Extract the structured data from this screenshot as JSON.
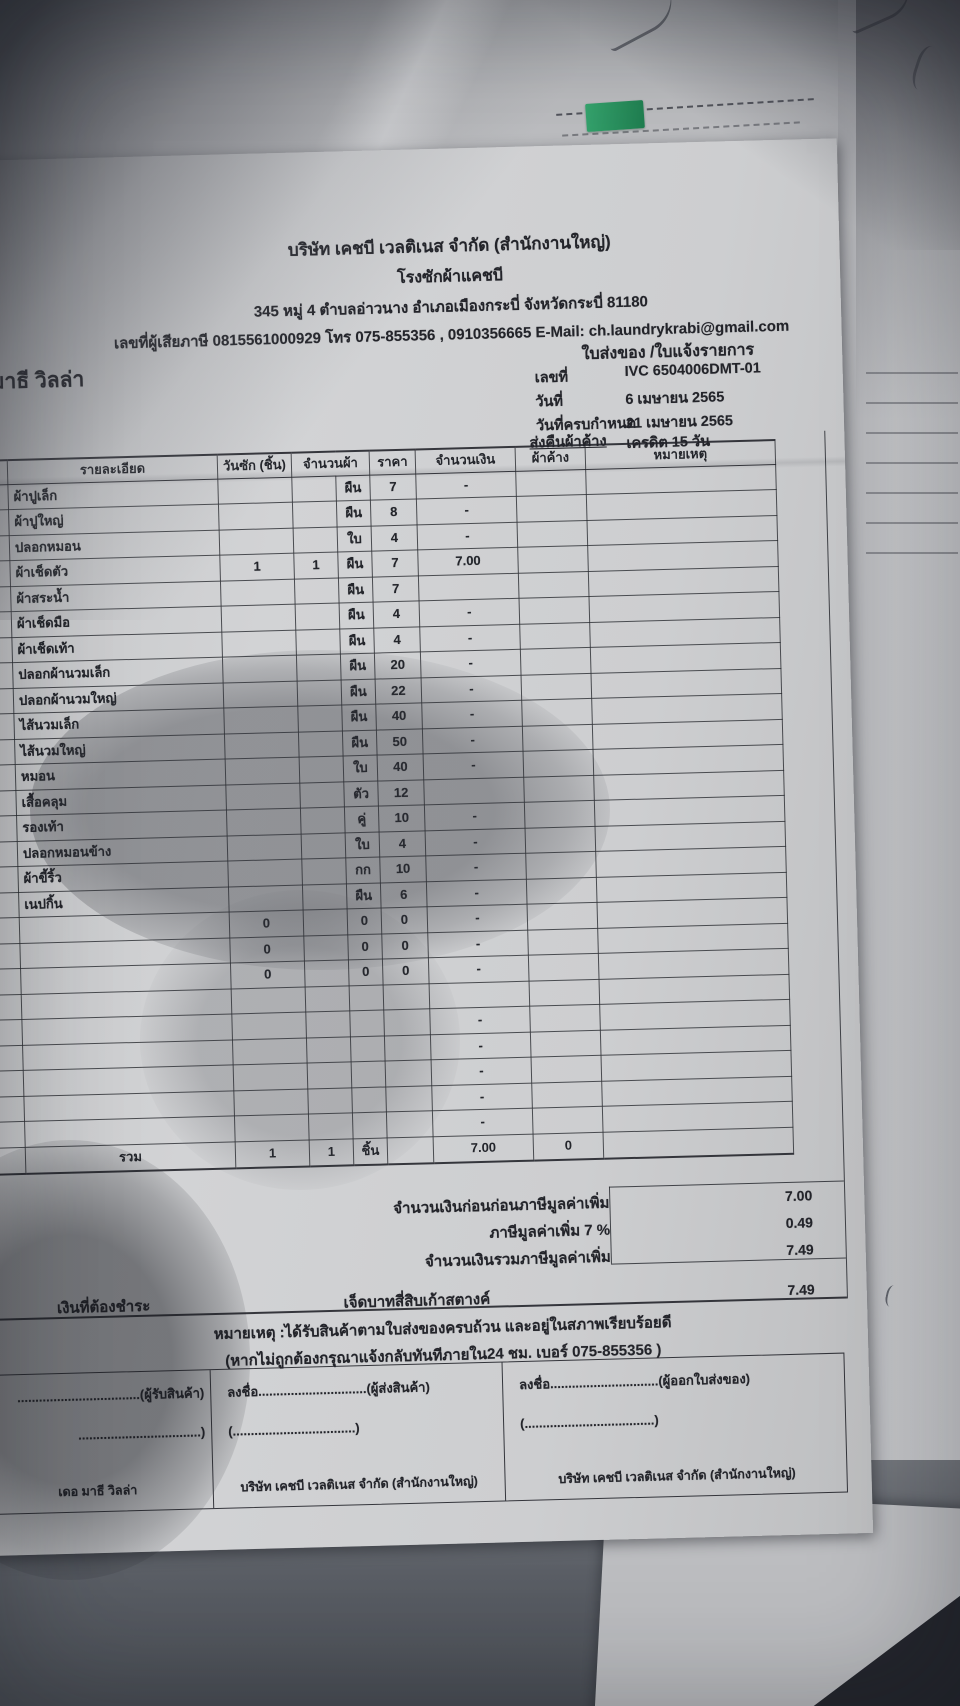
{
  "photo": {
    "description": "photo of a Thai laundry delivery note / invoice on paper",
    "colors": {
      "paper": "#cdced0",
      "background_paper": "#b6b7ba",
      "fabric": "#565a61",
      "shadow": "#23252c",
      "highlight_tab": "#2f9e62"
    }
  },
  "document": {
    "company": {
      "name": "บริษัท เคชบี เวลติเนส จำกัด (สำนักงานใหญ่)",
      "branch": "โรงซักผ้าแคชบี",
      "address": "345 หมู่ 4 ตำบลอ่าวนาง อำเภอเมืองกระบี่ จังหวัดกระบี่ 81180",
      "contact": "เลขที่ผู้เสียภาษี 0815561000929 โทร 075-855356 , 0910356665 E-Mail: ch.laundrykrabi@gmail.com"
    },
    "doc_type": "ใบส่งของ /ใบแจ้งรายการ",
    "customer": "มาธี วิลล่า",
    "meta": {
      "no_label": "เลขที่",
      "no": "IVC 6504006DMT-01",
      "date_label": "วันที่",
      "date": "6 เมษายน 2565",
      "due_label": "วันที่ครบกำหนด",
      "due": "21 เมษายน 2565",
      "return_note": "ส่งคืนผ้าค้าง",
      "credit": "เครดิต 15 วัน"
    },
    "table": {
      "headers": [
        "รายละเอียด",
        "วันซัก (ชิ้น)",
        "จำนวนผ้า",
        "ราคา",
        "จำนวนเงิน",
        "ผ้าค้าง",
        "หมายเหตุ"
      ],
      "rows": [
        {
          "name": "ผ้าปูเล็ก",
          "wash": "",
          "qty": "",
          "unit": "ผืน",
          "price": "7",
          "amount": "-",
          "balance": "",
          "note": ""
        },
        {
          "name": "ผ้าปูใหญ่",
          "wash": "",
          "qty": "",
          "unit": "ผืน",
          "price": "8",
          "amount": "-",
          "balance": "",
          "note": ""
        },
        {
          "name": "ปลอกหมอน",
          "wash": "",
          "qty": "",
          "unit": "ใบ",
          "price": "4",
          "amount": "-",
          "balance": "",
          "note": ""
        },
        {
          "name": "ผ้าเช็ดตัว",
          "wash": "1",
          "qty": "1",
          "unit": "ผืน",
          "price": "7",
          "amount": "7.00",
          "balance": "",
          "note": ""
        },
        {
          "name": "ผ้าสระน้ำ",
          "wash": "",
          "qty": "",
          "unit": "ผืน",
          "price": "7",
          "amount": "",
          "balance": "",
          "note": ""
        },
        {
          "name": "ผ้าเช็ดมือ",
          "wash": "",
          "qty": "",
          "unit": "ผืน",
          "price": "4",
          "amount": "-",
          "balance": "",
          "note": ""
        },
        {
          "name": "ผ้าเช็ดเท้า",
          "wash": "",
          "qty": "",
          "unit": "ผืน",
          "price": "4",
          "amount": "-",
          "balance": "",
          "note": ""
        },
        {
          "name": "ปลอกผ้านวมเล็ก",
          "wash": "",
          "qty": "",
          "unit": "ผืน",
          "price": "20",
          "amount": "-",
          "balance": "",
          "note": ""
        },
        {
          "name": "ปลอกผ้านวมใหญ่",
          "wash": "",
          "qty": "",
          "unit": "ผืน",
          "price": "22",
          "amount": "-",
          "balance": "",
          "note": ""
        },
        {
          "name": "ไส้นวมเล็ก",
          "wash": "",
          "qty": "",
          "unit": "ผืน",
          "price": "40",
          "amount": "-",
          "balance": "",
          "note": ""
        },
        {
          "name": "ไส้นวมใหญ่",
          "wash": "",
          "qty": "",
          "unit": "ผืน",
          "price": "50",
          "amount": "-",
          "balance": "",
          "note": ""
        },
        {
          "name": "หมอน",
          "wash": "",
          "qty": "",
          "unit": "ใบ",
          "price": "40",
          "amount": "-",
          "balance": "",
          "note": ""
        },
        {
          "name": "เสื้อคลุม",
          "wash": "",
          "qty": "",
          "unit": "ตัว",
          "price": "12",
          "amount": "",
          "balance": "",
          "note": ""
        },
        {
          "name": "รองเท้า",
          "wash": "",
          "qty": "",
          "unit": "คู่",
          "price": "10",
          "amount": "-",
          "balance": "",
          "note": ""
        },
        {
          "name": "ปลอกหมอนข้าง",
          "wash": "",
          "qty": "",
          "unit": "ใบ",
          "price": "4",
          "amount": "-",
          "balance": "",
          "note": ""
        },
        {
          "name": "ผ้าขี้ริ้ว",
          "wash": "",
          "qty": "",
          "unit": "กก",
          "price": "10",
          "amount": "-",
          "balance": "",
          "note": ""
        },
        {
          "name": "เนปกิ้น",
          "wash": "",
          "qty": "",
          "unit": "ผืน",
          "price": "6",
          "amount": "-",
          "balance": "",
          "note": ""
        },
        {
          "name": "",
          "wash": "0",
          "qty": "",
          "unit": "0",
          "price": "0",
          "amount": "-",
          "balance": "",
          "note": ""
        },
        {
          "name": "",
          "wash": "0",
          "qty": "",
          "unit": "0",
          "price": "0",
          "amount": "-",
          "balance": "",
          "note": ""
        },
        {
          "name": "",
          "wash": "0",
          "qty": "",
          "unit": "0",
          "price": "0",
          "amount": "-",
          "balance": "",
          "note": ""
        },
        {
          "name": "",
          "wash": "",
          "qty": "",
          "unit": "",
          "price": "",
          "amount": "",
          "balance": "",
          "note": ""
        },
        {
          "name": "",
          "wash": "",
          "qty": "",
          "unit": "",
          "price": "",
          "amount": "-",
          "balance": "",
          "note": ""
        },
        {
          "name": "",
          "wash": "",
          "qty": "",
          "unit": "",
          "price": "",
          "amount": "-",
          "balance": "",
          "note": ""
        },
        {
          "name": "",
          "wash": "",
          "qty": "",
          "unit": "",
          "price": "",
          "amount": "-",
          "balance": "",
          "note": ""
        },
        {
          "name": "",
          "wash": "",
          "qty": "",
          "unit": "",
          "price": "",
          "amount": "-",
          "balance": "",
          "note": ""
        },
        {
          "name": "",
          "wash": "",
          "qty": "",
          "unit": "",
          "price": "",
          "amount": "-",
          "balance": "",
          "note": ""
        }
      ],
      "total": {
        "label": "รวม",
        "wash": "1",
        "qty": "1",
        "unit": "ชิ้น",
        "price": "",
        "amount": "7.00",
        "balance": "0",
        "note": ""
      }
    },
    "summary": {
      "rows": [
        {
          "label": "จำนวนเงินก่อนก่อนภาษีมูลค่าเพิ่ม",
          "value": "7.00"
        },
        {
          "label": "ภาษีมูลค่าเพิ่ม 7 %",
          "value": "0.49"
        },
        {
          "label": "จำนวนเงินรวมภาษีมูลค่าเพิ่ม",
          "value": "7.49"
        }
      ],
      "payable_label": "เงินที่ต้องชำระ",
      "amount_text": "เจ็ดบาทสี่สิบเก้าสตางค์",
      "payable_value": "7.49"
    },
    "notes": [
      "หมายเหตุ :ได้รับสินค้าตามใบส่งของครบถ้วน และอยู่ในสภาพเรียบร้อยดี",
      "(หากไม่ถูกต้องกรุณาแจ้งกลับทันทีภายใน24 ชม.  เบอร์ 075-855356 )"
    ],
    "signatures": [
      {
        "line1": "..................................(ผู้รับสินค้า)",
        "line2": "..................................)",
        "name": "เดอ มาธี วิลล่า"
      },
      {
        "line1": "ลงชื่อ..............................(ผู้ส่งสินค้า)",
        "line2": "(..................................)",
        "name": "บริษัท เคชบี เวลติเนส จำกัด (สำนักงานใหญ่)"
      },
      {
        "line1": "ลงชื่อ..............................(ผู้ออกใบส่งของ)",
        "line2": "(....................................)",
        "name": "บริษัท เคชบี เวลติเนส จำกัด (สำนักงานใหญ่)"
      }
    ]
  }
}
